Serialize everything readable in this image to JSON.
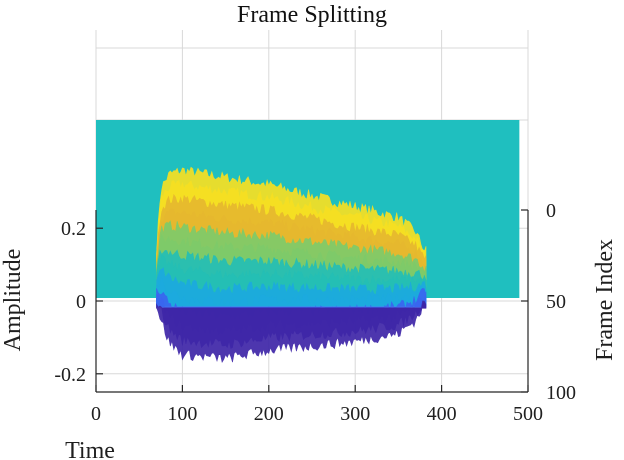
{
  "chart_data": {
    "type": "area",
    "title": "Frame Splitting",
    "xlabel": "Time",
    "ylabel": "Amplitude",
    "zlabel": "Frame Index",
    "x_ticks": [
      "0",
      "100",
      "200",
      "300",
      "400",
      "500"
    ],
    "y_ticks": [
      "-0.2",
      "0",
      "0.2"
    ],
    "z_ticks": [
      "0",
      "50",
      "100"
    ],
    "xlim": [
      0,
      500
    ],
    "ylim": [
      -0.25,
      0.25
    ],
    "zlim": [
      0,
      100
    ],
    "grid": true,
    "colormap": [
      "#3e26a8",
      "#3a66f0",
      "#1caadf",
      "#24bfb5",
      "#7ecb6a",
      "#e6b82f",
      "#f7e022"
    ],
    "silence_color": "#1fbfbf",
    "speech_envelope": {
      "time": [
        0,
        70,
        75,
        85,
        100,
        150,
        200,
        250,
        300,
        350,
        370,
        380,
        490
      ],
      "upper": [
        0.05,
        0.05,
        0.22,
        0.26,
        0.27,
        0.25,
        0.23,
        0.2,
        0.17,
        0.14,
        0.1,
        0.05,
        0.05
      ],
      "lower": [
        -0.02,
        -0.02,
        -0.1,
        -0.18,
        -0.22,
        -0.23,
        -0.2,
        -0.18,
        -0.16,
        -0.13,
        -0.08,
        -0.02,
        -0.02
      ]
    }
  }
}
